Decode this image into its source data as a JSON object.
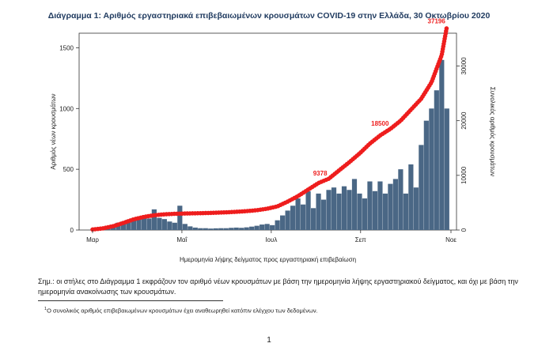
{
  "page": {
    "title": "Διάγραμμα 1: Αριθμός εργαστηριακά επιβεβαιωμένων κρουσμάτων COVID-19 στην Ελλάδα, 30 Οκτωβρίου 2020",
    "note": "Σημ.: οι στήλες στο Διάγραμμα 1 εκφράζουν τον αριθμό νέων κρουσμάτων με βάση την ημερομηνία λήψης εργαστηριακού δείγματος, και όχι με βάση την ημερομηνία ανακοίνωσης των κρουσμάτων.",
    "footnote_marker": "1",
    "footnote": "Ο συνολικός αριθμός επιβεβαιωμένων κρουσμάτων έχει αναθεωρηθεί κατόπιν ελέγχου των δεδομένων.",
    "page_number": "1"
  },
  "chart_data": {
    "type": "bar",
    "title": "Διάγραμμα 1: Αριθμός εργαστηριακά επιβεβαιωμένων κρουσμάτων COVID-19 στην Ελλάδα, 30 Οκτωβρίου 2020",
    "xlabel": "Ημερομηνία λήψης δείγματος προς εργαστηριακή επιβεβαίωση",
    "ylabel": "Αριθμός νέων κρουσμάτων",
    "y2label": "Συνολικός αριθμός κρουσμάτων",
    "x_ticks": [
      {
        "label": "Μαρ",
        "week": 0
      },
      {
        "label": "Μαΐ",
        "week": 8.7
      },
      {
        "label": "Ιουλ",
        "week": 17.4
      },
      {
        "label": "Σεπ",
        "week": 26.1
      },
      {
        "label": "Νοε",
        "week": 34.9
      }
    ],
    "ylim": [
      0,
      1620
    ],
    "yticks": [
      0,
      500,
      1000,
      1500
    ],
    "y2lim": [
      0,
      36000
    ],
    "y2ticks": [
      0,
      10000,
      20000,
      30000
    ],
    "grid": false,
    "bar_color": "#4a6785",
    "line_color": "#ee1d1d",
    "bars": {
      "x_weeks": [
        0,
        0.5,
        1,
        1.5,
        2,
        2.5,
        3,
        3.5,
        4,
        4.5,
        5,
        5.5,
        6,
        6.5,
        7,
        7.5,
        8,
        8.5,
        9,
        9.5,
        10,
        10.5,
        11,
        11.5,
        12,
        12.5,
        13,
        13.5,
        14,
        14.5,
        15,
        15.5,
        16,
        16.5,
        17,
        17.5,
        18,
        18.5,
        19,
        19.5,
        20,
        20.5,
        21,
        21.5,
        22,
        22.5,
        23,
        23.5,
        24,
        24.5,
        25,
        25.5,
        26,
        26.5,
        27,
        27.5,
        28,
        28.5,
        29,
        29.5,
        30,
        30.5,
        31,
        31.5,
        32,
        32.5,
        33,
        33.5,
        34,
        34.5
      ],
      "values": [
        2,
        5,
        10,
        25,
        40,
        60,
        70,
        85,
        80,
        110,
        100,
        95,
        170,
        100,
        90,
        70,
        60,
        200,
        50,
        30,
        20,
        15,
        15,
        12,
        14,
        15,
        15,
        18,
        20,
        18,
        22,
        28,
        35,
        45,
        50,
        40,
        80,
        120,
        160,
        200,
        260,
        210,
        320,
        180,
        300,
        250,
        330,
        350,
        300,
        360,
        330,
        420,
        300,
        260,
        400,
        320,
        400,
        300,
        380,
        420,
        500,
        300,
        540,
        350,
        700,
        900,
        1000,
        1150,
        1400,
        1000
      ]
    },
    "cumulative": {
      "x_weeks": [
        0,
        1,
        2,
        3,
        4,
        5,
        6,
        7,
        8,
        9,
        10,
        11,
        12,
        13,
        14,
        15,
        16,
        17,
        18,
        19,
        20,
        21,
        22,
        23,
        24,
        25,
        26,
        27,
        28,
        29,
        30,
        31,
        32,
        33,
        34,
        34.5
      ],
      "values": [
        100,
        300,
        700,
        1300,
        1950,
        2400,
        2700,
        2870,
        2960,
        3020,
        3060,
        3100,
        3160,
        3230,
        3330,
        3450,
        3620,
        3900,
        4320,
        5200,
        6200,
        7400,
        8600,
        9378,
        10900,
        12400,
        14000,
        15800,
        17300,
        18500,
        20000,
        22000,
        24000,
        27000,
        32000,
        37196
      ]
    },
    "point_labels": [
      {
        "text": "9378",
        "week": 23,
        "value": 9378
      },
      {
        "text": "18500",
        "week": 29,
        "value": 18500
      },
      {
        "text": "37196",
        "week": 34.5,
        "value": 37196
      }
    ]
  }
}
